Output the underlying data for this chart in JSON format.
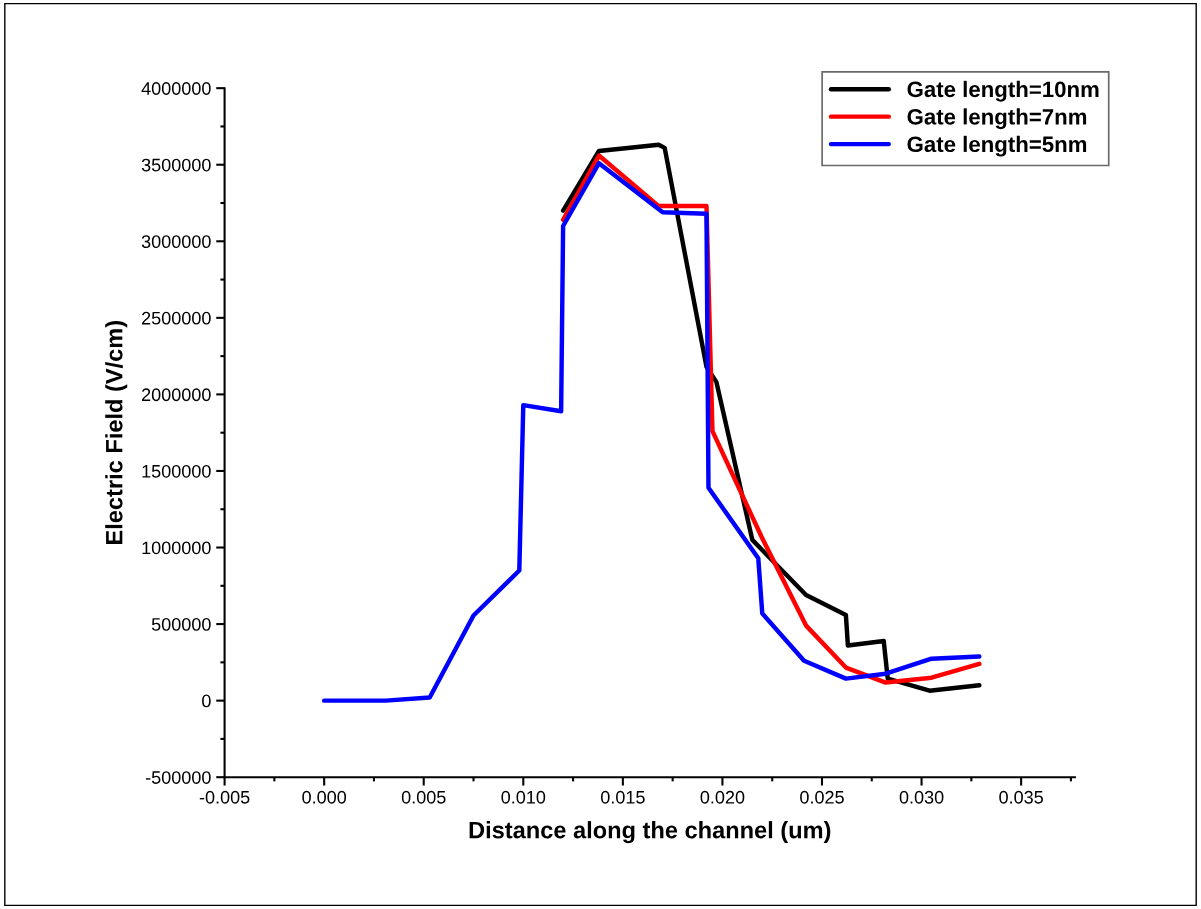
{
  "chart_data": {
    "type": "line",
    "xlabel": "Distance along the channel (um)",
    "ylabel": "Electric Field (V/cm)",
    "xlim": [
      -0.005,
      0.0377
    ],
    "xticks": [
      {
        "value": -0.005,
        "label": "-0.005"
      },
      {
        "value": 0.0,
        "label": "0.000"
      },
      {
        "value": 0.005,
        "label": "0.005"
      },
      {
        "value": 0.01,
        "label": "0.010"
      },
      {
        "value": 0.015,
        "label": "0.015"
      },
      {
        "value": 0.02,
        "label": "0.020"
      },
      {
        "value": 0.025,
        "label": "0.025"
      },
      {
        "value": 0.03,
        "label": "0.030"
      },
      {
        "value": 0.035,
        "label": "0.035"
      }
    ],
    "ylim": [
      -500000,
      4000000
    ],
    "yticks": [
      -500000,
      0,
      500000,
      1000000,
      1500000,
      2000000,
      2500000,
      3000000,
      3500000,
      4000000
    ],
    "grid": false,
    "legend": "top right",
    "marker": "none",
    "line_style": "solid",
    "series": [
      {
        "name": "Gate length=10nm",
        "color": "#000000",
        "x": [
          0.012,
          0.0138,
          0.0168,
          0.0171,
          0.0192,
          0.0197,
          0.0215,
          0.0242,
          0.0262,
          0.0263,
          0.0281,
          0.0283,
          0.0304,
          0.0329
        ],
        "values": [
          3200000,
          3590000,
          3630000,
          3610000,
          2180000,
          2080000,
          1050000,
          690000,
          560000,
          360000,
          390000,
          144000,
          65000,
          100000
        ]
      },
      {
        "name": "Gate length=7nm",
        "color": "#ff0000",
        "x": [
          0.012,
          0.0138,
          0.0168,
          0.0192,
          0.0195,
          0.022,
          0.0242,
          0.0262,
          0.0282,
          0.0305,
          0.0329
        ],
        "values": [
          3140000,
          3560000,
          3230000,
          3230000,
          1760000,
          1060000,
          490000,
          216000,
          118000,
          150000,
          240000
        ]
      },
      {
        "name": "Gate length=5nm",
        "color": "#0000ff",
        "x": [
          0.0,
          0.0031,
          0.0053,
          0.0075,
          0.0098,
          0.01,
          0.0119,
          0.012,
          0.0138,
          0.017,
          0.0192,
          0.0193,
          0.0218,
          0.022,
          0.0241,
          0.0262,
          0.0282,
          0.0305,
          0.0329
        ],
        "values": [
          0,
          0,
          20000,
          556000,
          850000,
          1930000,
          1890000,
          3100000,
          3510000,
          3190000,
          3180000,
          1390000,
          930000,
          570000,
          261000,
          144000,
          176000,
          274000,
          288000
        ]
      }
    ]
  }
}
